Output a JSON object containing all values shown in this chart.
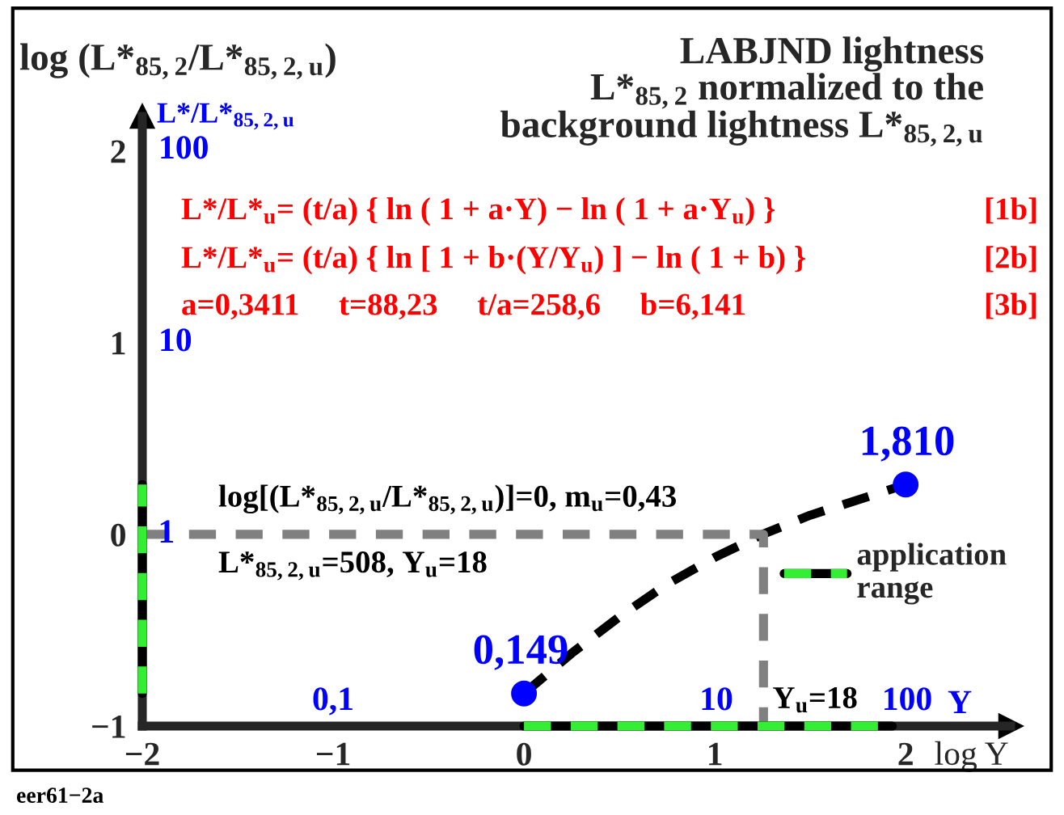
{
  "chart_data": {
    "type": "line",
    "title": "LABJND lightness\nL*$_{85,2}$ normalized to the\nbackground lightness L*$_{85,2,u}$",
    "ylabel": "log (L*$_{85,2}$/L*$_{85,2,u}$)",
    "xlabel": "log Y",
    "xlim": [
      -2,
      2.55
    ],
    "ylim": [
      -1,
      2.18
    ],
    "xticks": [
      {
        "value": -2,
        "label": "−2"
      },
      {
        "value": -1,
        "label": "−1"
      },
      0,
      1,
      2
    ],
    "yticks": [
      {
        "value": -1,
        "label": "−1"
      },
      0,
      1,
      2
    ],
    "grid": false,
    "legend": "right",
    "series": [
      {
        "color": "#000000",
        "line_style": "dashed",
        "marker": "none",
        "x": [
          0,
          0.25,
          0.5,
          0.75,
          1,
          1.25,
          1.5,
          1.75,
          2
        ],
        "values": [
          -0.83,
          -0.62,
          -0.43,
          -0.26,
          -0.12,
          0.0,
          0.1,
          0.18,
          0.26
        ]
      },
      {
        "type": "scatter",
        "color": "#0000ff",
        "marker": "circle",
        "x": [
          0,
          2
        ],
        "values": [
          -0.83,
          0.26
        ]
      },
      {
        "color": "#808080",
        "line_style": "dashed",
        "marker": "none",
        "x": [
          -2,
          1.255,
          1.255
        ],
        "values": [
          0,
          0,
          -1
        ]
      },
      {
        "name": "application\nrange",
        "color": "#33ee33",
        "line_style": "dashed",
        "marker": "none",
        "x": [
          0,
          1.93
        ],
        "values": [
          -1,
          -1
        ]
      },
      {
        "color": "#33ee33",
        "line_style": "dashed",
        "marker": "none",
        "x": [
          -2,
          -2
        ],
        "values": [
          -0.83,
          0.26
        ]
      }
    ],
    "annotations": [
      "L*/L*$_{u}$= (t/a) { ln ( 1 + a·Y) − ln ( 1 + a·Y$_{u}$) }",
      "[1b]",
      "L*/L*$_{u}$= (t/a) { ln [ 1 + b·(Y/Y$_{u}$) ] − ln ( 1 + b) }",
      "[2b]",
      "a=0,3411     t=88,23     t/a=258,6     b=6,141",
      "[3b]",
      "log[(L*$_{85,2,u}$/L*$_{85,2,u}$)]=0, m$_{u}$=0,43",
      "L*$_{85,2,u}$=508, Y$_{u}$=18",
      {
        "text": "Y$_{u}$=18",
        "x": 1.255,
        "y": -1
      },
      "0,1",
      "10",
      "100",
      "Y",
      {
        "text": "1",
        "x": -2,
        "y": 0
      },
      "10",
      "100",
      "L*/L*$_{85,2,u}$",
      "eer61−2a",
      "0,149",
      "1,810"
    ]
  }
}
